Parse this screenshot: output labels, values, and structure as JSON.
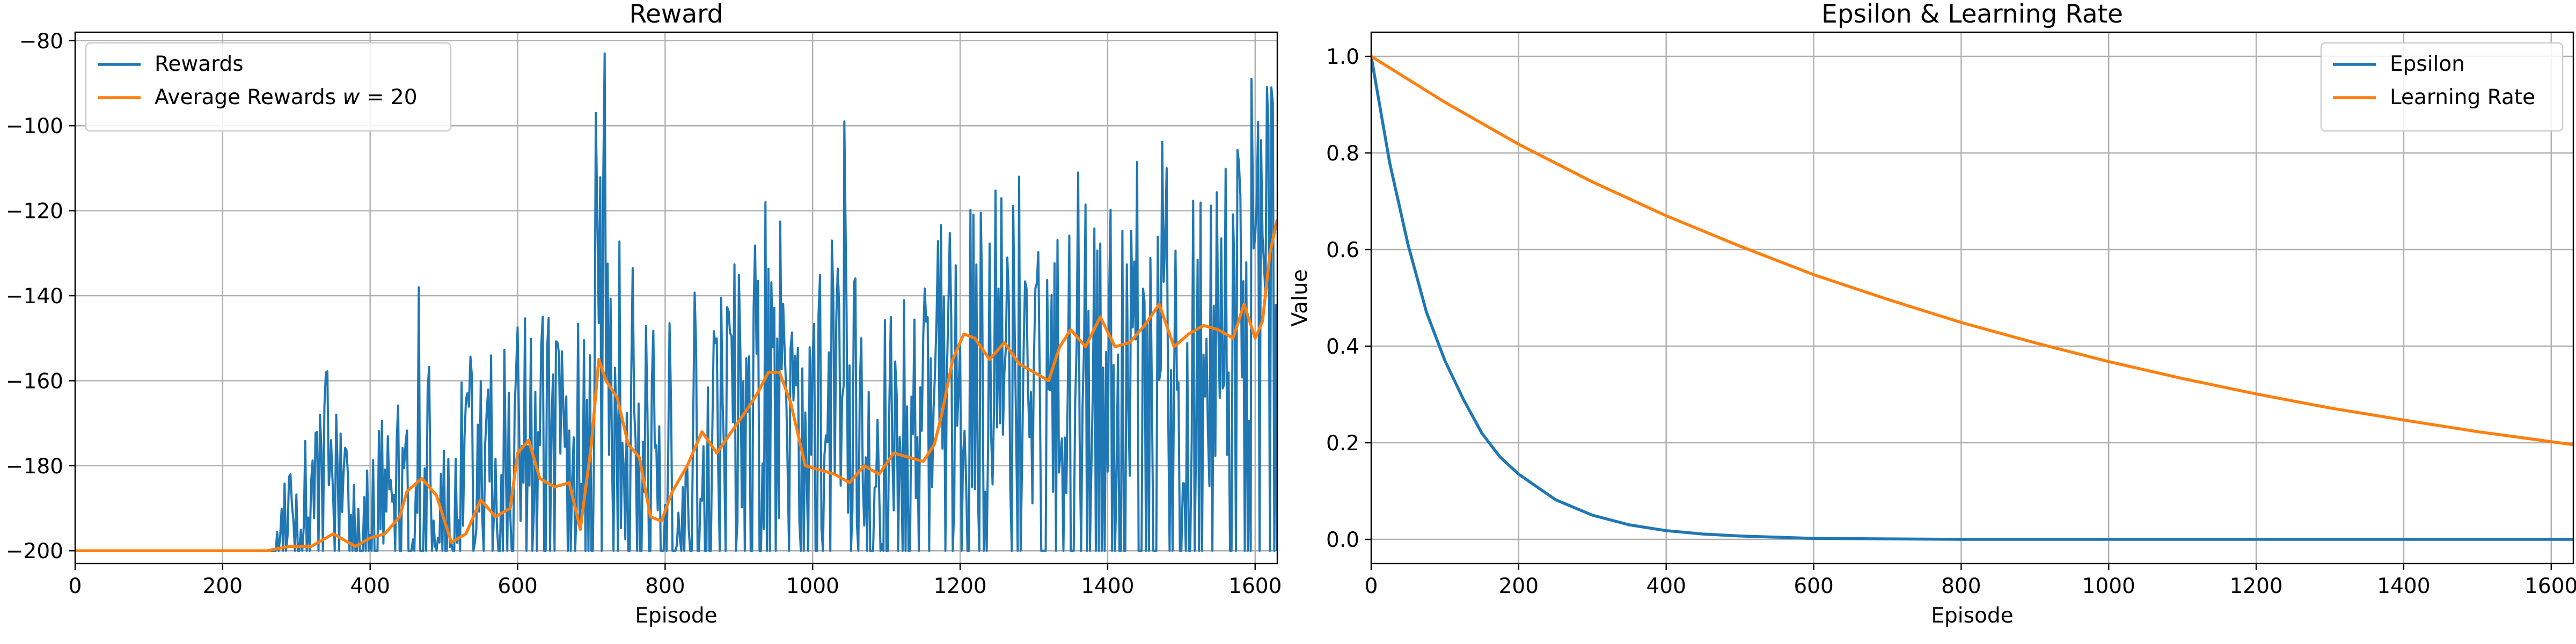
{
  "colors": {
    "blue": "#1f77b4",
    "orange": "#ff7f0e",
    "grid": "#b0b0b0"
  },
  "chart_data": [
    {
      "type": "line",
      "title": "Reward",
      "xlabel": "Episode",
      "ylabel": "",
      "xlim": [
        0,
        1630
      ],
      "ylim": [
        -203,
        -78
      ],
      "x_ticks": [
        0,
        200,
        400,
        600,
        800,
        1000,
        1200,
        1400,
        1600
      ],
      "y_ticks": [
        -200,
        -180,
        -160,
        -140,
        -120,
        -100,
        -80
      ],
      "grid": true,
      "legend_position": "top-left",
      "series": [
        {
          "name": "Rewards",
          "color": "#1f77b4",
          "style": "noisy",
          "points": [
            [
              0,
              -200
            ],
            [
              270,
              -200
            ],
            [
              290,
              -195
            ],
            [
              320,
              -185
            ],
            [
              340,
              -170
            ],
            [
              380,
              -200
            ],
            [
              420,
              -185
            ],
            [
              460,
              -175
            ],
            [
              480,
              -165
            ],
            [
              500,
              -200
            ],
            [
              540,
              -175
            ],
            [
              580,
              -170
            ],
            [
              620,
              -165
            ],
            [
              650,
              -180
            ],
            [
              680,
              -168
            ],
            [
              700,
              -150
            ],
            [
              710,
              -120
            ],
            [
              720,
              -155
            ],
            [
              740,
              -160
            ],
            [
              780,
              -185
            ],
            [
              800,
              -185
            ],
            [
              840,
              -175
            ],
            [
              880,
              -170
            ],
            [
              920,
              -165
            ],
            [
              960,
              -155
            ],
            [
              980,
              -165
            ],
            [
              1000,
              -170
            ],
            [
              1040,
              -160
            ],
            [
              1080,
              -175
            ],
            [
              1120,
              -175
            ],
            [
              1160,
              -165
            ],
            [
              1200,
              -150
            ],
            [
              1240,
              -150
            ],
            [
              1280,
              -150
            ],
            [
              1320,
              -155
            ],
            [
              1360,
              -145
            ],
            [
              1400,
              -150
            ],
            [
              1440,
              -145
            ],
            [
              1480,
              -140
            ],
            [
              1520,
              -155
            ],
            [
              1560,
              -145
            ],
            [
              1600,
              -135
            ],
            [
              1620,
              -115
            ],
            [
              1630,
              -110
            ]
          ],
          "spikes": [
            [
              332,
              -168
            ],
            [
              347,
              -174
            ],
            [
              466,
              -138
            ],
            [
              718,
              -83
            ],
            [
              706,
              -97
            ],
            [
              1043,
              -99
            ],
            [
              1595,
              -89
            ],
            [
              1622,
              -91
            ],
            [
              1360,
              -111
            ],
            [
              1480,
              -110
            ],
            [
              1280,
              -112
            ],
            [
              936,
              -118
            ]
          ]
        },
        {
          "name": "Average Rewards $w = 20$",
          "color": "#ff7f0e",
          "points": [
            [
              0,
              -200
            ],
            [
              260,
              -200
            ],
            [
              290,
              -199
            ],
            [
              320,
              -199
            ],
            [
              350,
              -196
            ],
            [
              380,
              -199
            ],
            [
              400,
              -197
            ],
            [
              420,
              -196
            ],
            [
              440,
              -192
            ],
            [
              450,
              -186
            ],
            [
              470,
              -183
            ],
            [
              490,
              -187
            ],
            [
              510,
              -198
            ],
            [
              530,
              -196
            ],
            [
              550,
              -188
            ],
            [
              570,
              -192
            ],
            [
              590,
              -190
            ],
            [
              600,
              -177
            ],
            [
              615,
              -174
            ],
            [
              630,
              -183
            ],
            [
              650,
              -185
            ],
            [
              670,
              -184
            ],
            [
              685,
              -195
            ],
            [
              700,
              -175
            ],
            [
              710,
              -155
            ],
            [
              720,
              -160
            ],
            [
              735,
              -164
            ],
            [
              750,
              -175
            ],
            [
              765,
              -178
            ],
            [
              780,
              -192
            ],
            [
              795,
              -193
            ],
            [
              810,
              -186
            ],
            [
              830,
              -180
            ],
            [
              850,
              -172
            ],
            [
              870,
              -177
            ],
            [
              890,
              -172
            ],
            [
              910,
              -167
            ],
            [
              925,
              -163
            ],
            [
              940,
              -158
            ],
            [
              955,
              -158
            ],
            [
              970,
              -165
            ],
            [
              990,
              -180
            ],
            [
              1010,
              -181
            ],
            [
              1030,
              -182
            ],
            [
              1050,
              -184
            ],
            [
              1070,
              -180
            ],
            [
              1090,
              -182
            ],
            [
              1110,
              -177
            ],
            [
              1130,
              -178
            ],
            [
              1150,
              -179
            ],
            [
              1165,
              -175
            ],
            [
              1175,
              -168
            ],
            [
              1190,
              -155
            ],
            [
              1205,
              -149
            ],
            [
              1220,
              -150
            ],
            [
              1240,
              -155
            ],
            [
              1260,
              -151
            ],
            [
              1280,
              -156
            ],
            [
              1300,
              -158
            ],
            [
              1320,
              -160
            ],
            [
              1335,
              -152
            ],
            [
              1350,
              -148
            ],
            [
              1370,
              -152
            ],
            [
              1390,
              -145
            ],
            [
              1410,
              -152
            ],
            [
              1430,
              -151
            ],
            [
              1450,
              -147
            ],
            [
              1470,
              -142
            ],
            [
              1490,
              -152
            ],
            [
              1510,
              -149
            ],
            [
              1530,
              -147
            ],
            [
              1550,
              -148
            ],
            [
              1570,
              -150
            ],
            [
              1585,
              -142
            ],
            [
              1600,
              -150
            ],
            [
              1610,
              -146
            ],
            [
              1620,
              -130
            ],
            [
              1630,
              -122
            ]
          ]
        }
      ]
    },
    {
      "type": "line",
      "title": "Epsilon & Learning Rate",
      "xlabel": "Episode",
      "ylabel": "Value",
      "xlim": [
        0,
        1630
      ],
      "ylim": [
        -0.05,
        1.05
      ],
      "x_ticks": [
        0,
        200,
        400,
        600,
        800,
        1000,
        1200,
        1400,
        1600
      ],
      "y_ticks": [
        0.0,
        0.2,
        0.4,
        0.6,
        0.8,
        1.0
      ],
      "y_tick_labels": [
        "0.0",
        "0.2",
        "0.4",
        "0.6",
        "0.8",
        "1.0"
      ],
      "grid": true,
      "legend_position": "top-right",
      "series": [
        {
          "name": "Epsilon",
          "color": "#1f77b4",
          "points": [
            [
              0,
              1.0
            ],
            [
              25,
              0.78
            ],
            [
              50,
              0.61
            ],
            [
              75,
              0.47
            ],
            [
              100,
              0.37
            ],
            [
              125,
              0.29
            ],
            [
              150,
              0.22
            ],
            [
              175,
              0.17
            ],
            [
              200,
              0.135
            ],
            [
              250,
              0.082
            ],
            [
              300,
              0.05
            ],
            [
              350,
              0.03
            ],
            [
              400,
              0.018
            ],
            [
              450,
              0.011
            ],
            [
              500,
              0.007
            ],
            [
              600,
              0.002
            ],
            [
              700,
              0.001
            ],
            [
              800,
              0.0
            ],
            [
              1000,
              0.0
            ],
            [
              1200,
              0.0
            ],
            [
              1400,
              0.0
            ],
            [
              1630,
              0.0
            ]
          ]
        },
        {
          "name": "Learning Rate",
          "color": "#ff7f0e",
          "points": [
            [
              0,
              1.0
            ],
            [
              100,
              0.905
            ],
            [
              200,
              0.818
            ],
            [
              300,
              0.74
            ],
            [
              400,
              0.67
            ],
            [
              500,
              0.607
            ],
            [
              600,
              0.548
            ],
            [
              700,
              0.497
            ],
            [
              800,
              0.449
            ],
            [
              900,
              0.407
            ],
            [
              1000,
              0.368
            ],
            [
              1100,
              0.333
            ],
            [
              1200,
              0.301
            ],
            [
              1300,
              0.272
            ],
            [
              1400,
              0.247
            ],
            [
              1500,
              0.223
            ],
            [
              1630,
              0.196
            ]
          ]
        }
      ]
    }
  ]
}
